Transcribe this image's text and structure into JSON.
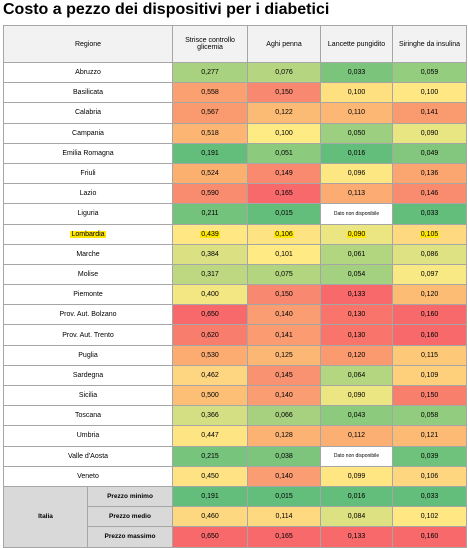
{
  "title": "Costo a pezzo dei dispositivi per i diabetici",
  "table": {
    "headers": [
      "Regione",
      "Strisce controllo glicemia",
      "Aghi penna",
      "Lancette pungidito",
      "Siringhe da insulina"
    ],
    "rows": [
      {
        "region": "Abruzzo",
        "cells": [
          "0,277",
          "0,076",
          "0,033",
          "0,059"
        ],
        "colors": [
          "#a8d27f",
          "#b5d580",
          "#7ac47c",
          "#94cd7e"
        ]
      },
      {
        "region": "Basilicata",
        "cells": [
          "0,558",
          "0,150",
          "0,100",
          "0,100"
        ],
        "colors": [
          "#fba070",
          "#f98870",
          "#ffe081",
          "#ffe784"
        ]
      },
      {
        "region": "Calabria",
        "cells": [
          "0,567",
          "0,122",
          "0,110",
          "0,141"
        ],
        "colors": [
          "#fa9a6f",
          "#fcbb75",
          "#fcb774",
          "#fa9a6f"
        ]
      },
      {
        "region": "Campania",
        "cells": [
          "0,518",
          "0,100",
          "0,050",
          "0,090"
        ],
        "colors": [
          "#fcb572",
          "#ffeb84",
          "#9ccf7f",
          "#e8e583"
        ]
      },
      {
        "region": "Emilia Romagna",
        "cells": [
          "0,191",
          "0,051",
          "0,016",
          "0,049"
        ],
        "colors": [
          "#63be7b",
          "#8ccb7e",
          "#63be7b",
          "#82c77d"
        ]
      },
      {
        "region": "Friuli",
        "cells": [
          "0,524",
          "0,149",
          "0,096",
          "0,136"
        ],
        "colors": [
          "#fcb070",
          "#f98a70",
          "#fde783",
          "#fba570"
        ]
      },
      {
        "region": "Lazio",
        "cells": [
          "0,590",
          "0,165",
          "0,113",
          "0,146"
        ],
        "colors": [
          "#f98c6e",
          "#f8696b",
          "#fcab72",
          "#f98c6e"
        ]
      },
      {
        "region": "Liguria",
        "cells": [
          "0,211",
          "0,015",
          "Dato non disponibile",
          "0,033"
        ],
        "colors": [
          "#74c37c",
          "#63be7b",
          "#ffffff",
          "#63be7b"
        ]
      },
      {
        "region": "Lombardia",
        "cells": [
          "0,439",
          "0,106",
          "0,090",
          "0,105"
        ],
        "colors": [
          "#ffe884",
          "#fee383",
          "#ebe582",
          "#fed980"
        ],
        "highlight": true
      },
      {
        "region": "Marche",
        "cells": [
          "0,384",
          "0,101",
          "0,061",
          "0,086"
        ],
        "colors": [
          "#dbe182",
          "#ffea84",
          "#b2d580",
          "#dfe283"
        ]
      },
      {
        "region": "Molise",
        "cells": [
          "0,317",
          "0,075",
          "0,054",
          "0,097"
        ],
        "colors": [
          "#bdd881",
          "#b3d580",
          "#a3d17f",
          "#f9e984"
        ]
      },
      {
        "region": "Piemonte",
        "cells": [
          "0,400",
          "0,150",
          "0,133",
          "0,120"
        ],
        "colors": [
          "#f2e783",
          "#f98870",
          "#f8696b",
          "#fcbc74"
        ]
      },
      {
        "region": "Prov. Aut. Bolzano",
        "cells": [
          "0,650",
          "0,140",
          "0,130",
          "0,160"
        ],
        "colors": [
          "#f8696b",
          "#fa9d72",
          "#f9756c",
          "#f8696b"
        ]
      },
      {
        "region": "Prov. Aut. Trento",
        "cells": [
          "0,620",
          "0,141",
          "0,130",
          "0,160"
        ],
        "colors": [
          "#f87d6d",
          "#fa9b72",
          "#f9756c",
          "#f8696b"
        ]
      },
      {
        "region": "Puglia",
        "cells": [
          "0,530",
          "0,125",
          "0,120",
          "0,115"
        ],
        "colors": [
          "#fcac71",
          "#fcb774",
          "#fb996f",
          "#fdc877"
        ]
      },
      {
        "region": "Sardegna",
        "cells": [
          "0,462",
          "0,145",
          "0,064",
          "0,109"
        ],
        "colors": [
          "#fed580",
          "#f99271",
          "#b5d680",
          "#fed07c"
        ]
      },
      {
        "region": "Sicilia",
        "cells": [
          "0,500",
          "0,140",
          "0,090",
          "0,150"
        ],
        "colors": [
          "#fdbf75",
          "#fa9d72",
          "#ebe582",
          "#f97f6d"
        ]
      },
      {
        "region": "Toscana",
        "cells": [
          "0,366",
          "0,066",
          "0,043",
          "0,058"
        ],
        "colors": [
          "#d3df82",
          "#a7d17f",
          "#8cca7e",
          "#92cc7e"
        ]
      },
      {
        "region": "Umbria",
        "cells": [
          "0,447",
          "0,128",
          "0,112",
          "0,121"
        ],
        "colors": [
          "#ffe483",
          "#fbb273",
          "#fcaf72",
          "#fcba74"
        ]
      },
      {
        "region": "Valle d'Aosta",
        "cells": [
          "0,215",
          "0,038",
          "Dato non disponibile",
          "0,039"
        ],
        "colors": [
          "#77c47c",
          "#7dc57d",
          "#ffffff",
          "#6fc27c"
        ]
      },
      {
        "region": "Veneto",
        "cells": [
          "0,450",
          "0,140",
          "0,099",
          "0,106"
        ],
        "colors": [
          "#fee283",
          "#fa9d72",
          "#ffe683",
          "#fed67f"
        ]
      }
    ],
    "summary": {
      "label": "Italia",
      "rows": [
        {
          "label": "Prezzo minimo",
          "cells": [
            "0,191",
            "0,015",
            "0,016",
            "0,033"
          ],
          "colors": [
            "#63be7b",
            "#63be7b",
            "#63be7b",
            "#63be7b"
          ]
        },
        {
          "label": "Prezzo medio",
          "cells": [
            "0,460",
            "0,114",
            "0,084",
            "0,102"
          ],
          "colors": [
            "#fed880",
            "#fed980",
            "#dde182",
            "#ffe784"
          ]
        },
        {
          "label": "Prezzo massimo",
          "cells": [
            "0,650",
            "0,165",
            "0,133",
            "0,160"
          ],
          "colors": [
            "#f8696b",
            "#f8696b",
            "#f8696b",
            "#f8696b"
          ]
        }
      ]
    }
  }
}
